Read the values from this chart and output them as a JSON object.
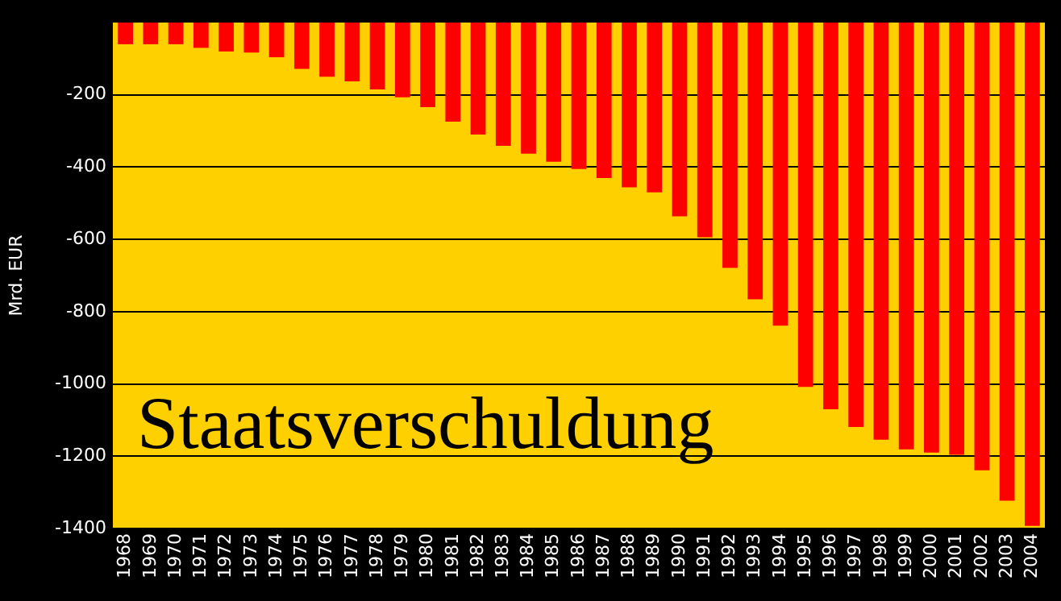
{
  "chart_data": {
    "type": "bar",
    "title": "Staatsverschuldung",
    "ylabel": "Mrd. EUR",
    "categories": [
      "1968",
      "1969",
      "1970",
      "1971",
      "1972",
      "1973",
      "1974",
      "1975",
      "1976",
      "1977",
      "1978",
      "1979",
      "1980",
      "1981",
      "1982",
      "1983",
      "1984",
      "1985",
      "1986",
      "1987",
      "1988",
      "1989",
      "1990",
      "1991",
      "1992",
      "1993",
      "1994",
      "1995",
      "1996",
      "1997",
      "1998",
      "1999",
      "2000",
      "2001",
      "2002",
      "2003",
      "2004"
    ],
    "values": [
      -60,
      -60,
      -60,
      -70,
      -80,
      -83,
      -96,
      -128,
      -150,
      -163,
      -185,
      -207,
      -234,
      -274,
      -310,
      -341,
      -363,
      -385,
      -405,
      -430,
      -456,
      -470,
      -536,
      -594,
      -679,
      -766,
      -839,
      -1008,
      -1070,
      -1119,
      -1154,
      -1181,
      -1190,
      -1196,
      -1239,
      -1323,
      -1393
    ],
    "color": "#ff0000",
    "ylim": [
      -1400,
      0
    ],
    "yticks": [
      -200,
      -400,
      -600,
      -800,
      -1000,
      -1200,
      -1400
    ],
    "grid": "y",
    "legend": false
  }
}
